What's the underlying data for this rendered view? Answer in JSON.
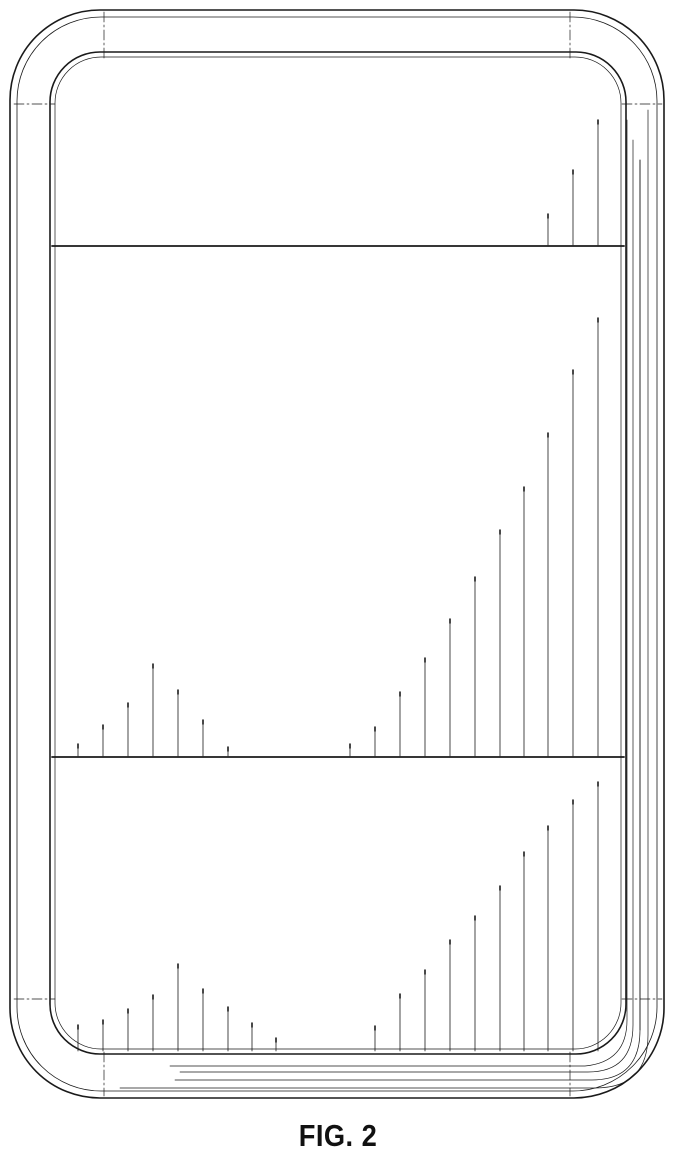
{
  "figure": {
    "caption": "FIG. 2"
  },
  "colors": {
    "line": "#1a1a1a",
    "background": "#ffffff"
  }
}
